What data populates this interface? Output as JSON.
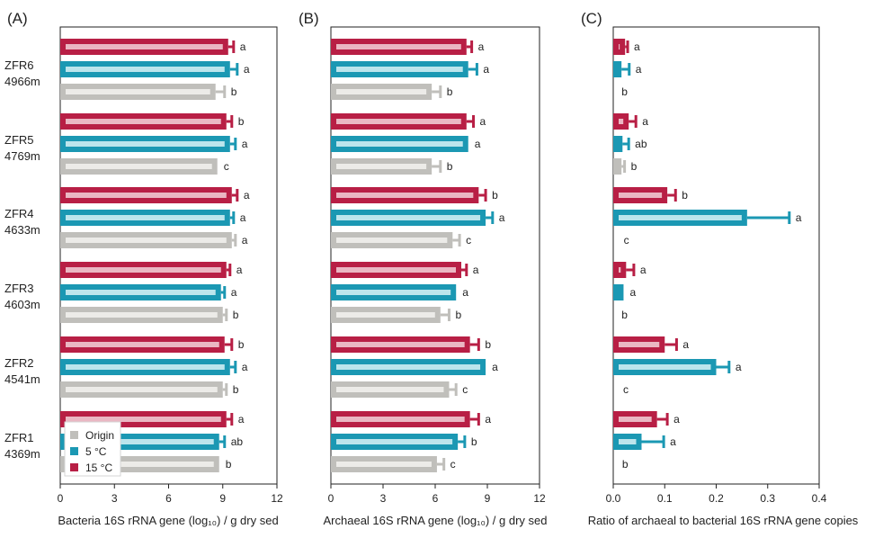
{
  "colors": {
    "crimson": "#b81f45",
    "crimson_fill": "#eab7c3",
    "teal": "#1b98b3",
    "teal_fill": "#bce5ec",
    "grey": "#c0bfbb",
    "grey_fill": "#ecebe8"
  },
  "legend": {
    "items": [
      {
        "label": "Origin",
        "color": "#c0bfbb"
      },
      {
        "label": "5 °C",
        "color": "#1b98b3"
      },
      {
        "label": "15 °C",
        "color": "#b81f45"
      }
    ]
  },
  "site_labels": [
    {
      "name": "ZFR6",
      "depth": "4966m"
    },
    {
      "name": "ZFR5",
      "depth": "4769m"
    },
    {
      "name": "ZFR4",
      "depth": "4633m"
    },
    {
      "name": "ZFR3",
      "depth": "4603m"
    },
    {
      "name": "ZFR2",
      "depth": "4541m"
    },
    {
      "name": "ZFR1",
      "depth": "4369m"
    }
  ],
  "chart_data": [
    {
      "type": "bar",
      "orientation": "horizontal",
      "panel": "(A)",
      "xlabel": "Bacteria 16S rRNA gene (log₁₀) / g dry sed",
      "xlim": [
        0,
        12
      ],
      "xticks": [
        "0",
        "3",
        "6",
        "9",
        "12"
      ],
      "categories": [
        "ZFR6 4966m",
        "ZFR5 4769m",
        "ZFR4 4633m",
        "ZFR3 4603m",
        "ZFR2 4541m",
        "ZFR1 4369m"
      ],
      "series": [
        {
          "name": "15 °C",
          "values": [
            9.3,
            9.2,
            9.5,
            9.2,
            9.1,
            9.2
          ],
          "errors": [
            0.3,
            0.3,
            0.3,
            0.2,
            0.4,
            0.3
          ],
          "labels": [
            "a",
            "b",
            "a",
            "a",
            "b",
            "a"
          ]
        },
        {
          "name": "5 °C",
          "values": [
            9.4,
            9.4,
            9.4,
            8.9,
            9.4,
            8.8
          ],
          "errors": [
            0.4,
            0.3,
            0.2,
            0.2,
            0.3,
            0.3
          ],
          "labels": [
            "a",
            "a",
            "a",
            "a",
            "a",
            "ab"
          ]
        },
        {
          "name": "Origin",
          "values": [
            8.6,
            8.7,
            9.5,
            9.0,
            9.0,
            8.8
          ],
          "errors": [
            0.5,
            0.0,
            0.2,
            0.2,
            0.2,
            0.0
          ],
          "labels": [
            "b",
            "c",
            "a",
            "b",
            "b",
            "b"
          ]
        }
      ]
    },
    {
      "type": "bar",
      "orientation": "horizontal",
      "panel": "(B)",
      "xlabel": "Archaeal 16S rRNA gene (log₁₀) / g dry sed",
      "xlim": [
        0,
        12
      ],
      "xticks": [
        "0",
        "3",
        "6",
        "9",
        "12"
      ],
      "categories": [
        "ZFR6 4966m",
        "ZFR5 4769m",
        "ZFR4 4633m",
        "ZFR3 4603m",
        "ZFR2 4541m",
        "ZFR1 4369m"
      ],
      "series": [
        {
          "name": "15 °C",
          "values": [
            7.8,
            7.8,
            8.5,
            7.5,
            8.0,
            8.0
          ],
          "errors": [
            0.3,
            0.4,
            0.4,
            0.3,
            0.5,
            0.5
          ],
          "labels": [
            "a",
            "a",
            "b",
            "a",
            "b",
            "a"
          ]
        },
        {
          "name": "5 °C",
          "values": [
            7.9,
            7.9,
            8.9,
            7.2,
            8.9,
            7.3
          ],
          "errors": [
            0.5,
            0.0,
            0.4,
            0.0,
            0.0,
            0.4
          ],
          "labels": [
            "a",
            "a",
            "a",
            "a",
            "a",
            "b"
          ]
        },
        {
          "name": "Origin",
          "values": [
            5.8,
            5.8,
            7.0,
            6.3,
            6.8,
            6.1
          ],
          "errors": [
            0.5,
            0.5,
            0.4,
            0.5,
            0.4,
            0.4
          ],
          "labels": [
            "b",
            "b",
            "c",
            "b",
            "c",
            "c"
          ]
        }
      ]
    },
    {
      "type": "bar",
      "orientation": "horizontal",
      "panel": "(C)",
      "xlabel": "Ratio of archaeal to bacterial 16S rRNA gene copies",
      "xlim": [
        0,
        0.4
      ],
      "xticks": [
        "0.0",
        "0.1",
        "0.2",
        "0.3",
        "0.4"
      ],
      "categories": [
        "ZFR6 4966m",
        "ZFR5 4769m",
        "ZFR4 4633m",
        "ZFR3 4603m",
        "ZFR2 4541m",
        "ZFR1 4369m"
      ],
      "series": [
        {
          "name": "15 °C",
          "values": [
            0.023,
            0.03,
            0.105,
            0.025,
            0.1,
            0.085
          ],
          "errors": [
            0.005,
            0.014,
            0.016,
            0.015,
            0.023,
            0.02
          ],
          "labels": [
            "a",
            "a",
            "b",
            "a",
            "a",
            "a"
          ]
        },
        {
          "name": "5 °C",
          "values": [
            0.016,
            0.018,
            0.26,
            0.02,
            0.2,
            0.055
          ],
          "errors": [
            0.015,
            0.012,
            0.082,
            0.0,
            0.025,
            0.043
          ],
          "labels": [
            "a",
            "ab",
            "a",
            "a",
            "a",
            "a"
          ]
        },
        {
          "name": "Origin",
          "values": [
            0.004,
            0.016,
            0.008,
            0.004,
            0.007,
            0.005
          ],
          "errors": [
            0.0,
            0.006,
            0.0,
            0.0,
            0.0,
            0.0
          ],
          "labels": [
            "b",
            "b",
            "c",
            "b",
            "c",
            "b"
          ]
        }
      ]
    }
  ]
}
